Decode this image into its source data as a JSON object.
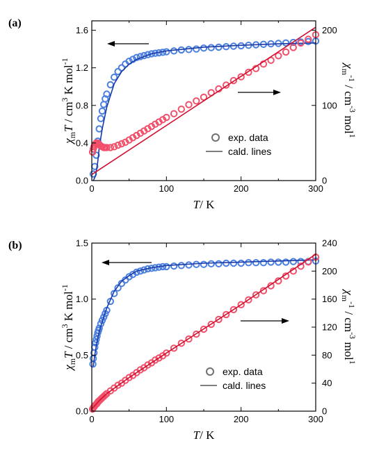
{
  "chart_data": [
    {
      "type": "scatter",
      "panel_label": "(a)",
      "xlabel_var": "T",
      "xlabel_unit": "/ K",
      "ylabel_left_parts": [
        "χ",
        "m",
        "T",
        "/ cm",
        "3",
        " K mol",
        "-1"
      ],
      "ylabel_right_parts": [
        "χ",
        "m",
        "-1",
        "/ cm",
        "-3",
        " mol",
        "1"
      ],
      "xlim": [
        0,
        300
      ],
      "ylim_left": [
        0,
        1.7
      ],
      "ylim_right": [
        0,
        212.5
      ],
      "x_ticks": [
        "0",
        "100",
        "200",
        "300"
      ],
      "y_left_ticks": [
        "0.0",
        "0.4",
        "0.8",
        "1.2",
        "1.6"
      ],
      "y_right_ticks": [
        "0",
        "100",
        "200"
      ],
      "legend": {
        "marker_label": "exp. data",
        "line_label": "cald. lines",
        "position": "center-right"
      },
      "arrows": [
        "left-pointing near χmT curve (left axis)",
        "right-pointing near χm⁻¹ curve (right axis)"
      ],
      "series": [
        {
          "axis": "left",
          "color": "#4a7fe0",
          "kind": "markers",
          "points": [
            [
              2,
              0.07
            ],
            [
              4,
              0.15
            ],
            [
              6,
              0.27
            ],
            [
              8,
              0.42
            ],
            [
              10,
              0.55
            ],
            [
              12,
              0.66
            ],
            [
              14,
              0.74
            ],
            [
              16,
              0.81
            ],
            [
              18,
              0.87
            ],
            [
              20,
              0.92
            ],
            [
              25,
              1.02
            ],
            [
              30,
              1.1
            ],
            [
              35,
              1.16
            ],
            [
              40,
              1.2
            ],
            [
              45,
              1.24
            ],
            [
              50,
              1.27
            ],
            [
              55,
              1.29
            ],
            [
              60,
              1.31
            ],
            [
              65,
              1.32
            ],
            [
              70,
              1.33
            ],
            [
              75,
              1.34
            ],
            [
              80,
              1.35
            ],
            [
              85,
              1.355
            ],
            [
              90,
              1.36
            ],
            [
              95,
              1.365
            ],
            [
              100,
              1.37
            ],
            [
              110,
              1.38
            ],
            [
              120,
              1.39
            ],
            [
              130,
              1.395
            ],
            [
              140,
              1.4
            ],
            [
              150,
              1.41
            ],
            [
              160,
              1.415
            ],
            [
              170,
              1.42
            ],
            [
              180,
              1.425
            ],
            [
              190,
              1.43
            ],
            [
              200,
              1.435
            ],
            [
              210,
              1.44
            ],
            [
              220,
              1.445
            ],
            [
              230,
              1.45
            ],
            [
              240,
              1.455
            ],
            [
              250,
              1.46
            ],
            [
              260,
              1.465
            ],
            [
              270,
              1.47
            ],
            [
              280,
              1.475
            ],
            [
              290,
              1.48
            ],
            [
              300,
              1.485
            ]
          ]
        },
        {
          "axis": "left",
          "color": "#1a3aa8",
          "kind": "line",
          "points": [
            [
              2,
              0.0
            ],
            [
              5,
              0.05
            ],
            [
              8,
              0.2
            ],
            [
              10,
              0.35
            ],
            [
              14,
              0.55
            ],
            [
              20,
              0.78
            ],
            [
              30,
              1.03
            ],
            [
              40,
              1.16
            ],
            [
              50,
              1.24
            ],
            [
              60,
              1.29
            ],
            [
              80,
              1.35
            ],
            [
              100,
              1.38
            ],
            [
              150,
              1.42
            ],
            [
              200,
              1.44
            ],
            [
              250,
              1.455
            ],
            [
              300,
              1.465
            ]
          ]
        },
        {
          "axis": "right",
          "color": "#f0506a",
          "kind": "markers",
          "points": [
            [
              1,
              38
            ],
            [
              2,
              42
            ],
            [
              3,
              45
            ],
            [
              4,
              47
            ],
            [
              5,
              49
            ],
            [
              6,
              50
            ],
            [
              7,
              50
            ],
            [
              8,
              50
            ],
            [
              9,
              49
            ],
            [
              10,
              48
            ],
            [
              12,
              46
            ],
            [
              14,
              45
            ],
            [
              16,
              44
            ],
            [
              18,
              44
            ],
            [
              20,
              44
            ],
            [
              25,
              44
            ],
            [
              30,
              45
            ],
            [
              35,
              47
            ],
            [
              40,
              49
            ],
            [
              45,
              51
            ],
            [
              50,
              54
            ],
            [
              55,
              57
            ],
            [
              60,
              60
            ],
            [
              65,
              63
            ],
            [
              70,
              66
            ],
            [
              75,
              69
            ],
            [
              80,
              72
            ],
            [
              85,
              75
            ],
            [
              90,
              78
            ],
            [
              95,
              81
            ],
            [
              100,
              84
            ],
            [
              110,
              89
            ],
            [
              120,
              95
            ],
            [
              130,
              101
            ],
            [
              140,
              106
            ],
            [
              150,
              111
            ],
            [
              160,
              117
            ],
            [
              170,
              122
            ],
            [
              180,
              127
            ],
            [
              190,
              133
            ],
            [
              200,
              138
            ],
            [
              210,
              144
            ],
            [
              220,
              149
            ],
            [
              230,
              155
            ],
            [
              240,
              160
            ],
            [
              250,
              166
            ],
            [
              260,
              171
            ],
            [
              270,
              177
            ],
            [
              280,
              183
            ],
            [
              290,
              188
            ],
            [
              300,
              194
            ]
          ]
        },
        {
          "axis": "right",
          "color": "#d01030",
          "kind": "line",
          "points": [
            [
              0,
              8
            ],
            [
              300,
              204
            ]
          ]
        }
      ]
    },
    {
      "type": "scatter",
      "panel_label": "(b)",
      "xlabel_var": "T",
      "xlabel_unit": "/ K",
      "ylabel_left_parts": [
        "χ",
        "m",
        "T",
        "/ cm",
        "3",
        " K mol",
        "-1"
      ],
      "ylabel_right_parts": [
        "χ",
        "m",
        "-1",
        "/ cm",
        "-3",
        " mol",
        "1"
      ],
      "xlim": [
        0,
        300
      ],
      "ylim_left": [
        0,
        1.5
      ],
      "ylim_right": [
        0,
        240
      ],
      "x_ticks": [
        "0",
        "100",
        "200",
        "300"
      ],
      "y_left_ticks": [
        "0.0",
        "0.5",
        "1.0",
        "1.5"
      ],
      "y_right_ticks": [
        "0",
        "40",
        "80",
        "120",
        "160",
        "200",
        "240"
      ],
      "legend": {
        "marker_label": "exp. data",
        "line_label": "cald. lines",
        "position": "center-right"
      },
      "arrows": [
        "left-pointing near χmT curve (left axis)",
        "right-pointing near χm⁻¹ curve (right axis)"
      ],
      "series": [
        {
          "axis": "left",
          "color": "#4a7fe0",
          "kind": "markers",
          "points": [
            [
              1.5,
              0.42
            ],
            [
              2,
              0.47
            ],
            [
              3,
              0.52
            ],
            [
              4,
              0.57
            ],
            [
              5,
              0.61
            ],
            [
              6,
              0.64
            ],
            [
              7,
              0.67
            ],
            [
              8,
              0.7
            ],
            [
              9,
              0.72
            ],
            [
              10,
              0.74
            ],
            [
              12,
              0.78
            ],
            [
              14,
              0.81
            ],
            [
              16,
              0.84
            ],
            [
              18,
              0.87
            ],
            [
              20,
              0.9
            ],
            [
              25,
              0.98
            ],
            [
              30,
              1.05
            ],
            [
              35,
              1.1
            ],
            [
              40,
              1.14
            ],
            [
              45,
              1.17
            ],
            [
              50,
              1.2
            ],
            [
              55,
              1.22
            ],
            [
              60,
              1.24
            ],
            [
              65,
              1.25
            ],
            [
              70,
              1.26
            ],
            [
              75,
              1.27
            ],
            [
              80,
              1.275
            ],
            [
              85,
              1.28
            ],
            [
              90,
              1.285
            ],
            [
              95,
              1.29
            ],
            [
              100,
              1.29
            ],
            [
              110,
              1.295
            ],
            [
              120,
              1.3
            ],
            [
              130,
              1.305
            ],
            [
              140,
              1.31
            ],
            [
              150,
              1.31
            ],
            [
              160,
              1.315
            ],
            [
              170,
              1.315
            ],
            [
              180,
              1.32
            ],
            [
              190,
              1.32
            ],
            [
              200,
              1.32
            ],
            [
              210,
              1.325
            ],
            [
              220,
              1.325
            ],
            [
              230,
              1.325
            ],
            [
              240,
              1.33
            ],
            [
              250,
              1.33
            ],
            [
              260,
              1.33
            ],
            [
              270,
              1.335
            ],
            [
              280,
              1.335
            ],
            [
              290,
              1.335
            ],
            [
              300,
              1.34
            ]
          ]
        },
        {
          "axis": "left",
          "color": "#1a3aa8",
          "kind": "line",
          "points": [
            [
              2,
              0.4
            ],
            [
              4,
              0.5
            ],
            [
              6,
              0.58
            ],
            [
              8,
              0.65
            ],
            [
              10,
              0.71
            ],
            [
              15,
              0.82
            ],
            [
              20,
              0.92
            ],
            [
              30,
              1.07
            ],
            [
              40,
              1.16
            ],
            [
              50,
              1.21
            ],
            [
              60,
              1.25
            ],
            [
              80,
              1.28
            ],
            [
              100,
              1.3
            ],
            [
              150,
              1.32
            ],
            [
              200,
              1.33
            ],
            [
              250,
              1.34
            ],
            [
              300,
              1.35
            ]
          ]
        },
        {
          "axis": "right",
          "color": "#f0506a",
          "kind": "markers",
          "points": [
            [
              1,
              3
            ],
            [
              2,
              5
            ],
            [
              3,
              6
            ],
            [
              4,
              8
            ],
            [
              5,
              9
            ],
            [
              6,
              10
            ],
            [
              7,
              11
            ],
            [
              8,
              13
            ],
            [
              9,
              14
            ],
            [
              10,
              15
            ],
            [
              12,
              17
            ],
            [
              14,
              19
            ],
            [
              16,
              21
            ],
            [
              18,
              23
            ],
            [
              20,
              25
            ],
            [
              25,
              29
            ],
            [
              30,
              33
            ],
            [
              35,
              37
            ],
            [
              40,
              40
            ],
            [
              45,
              44
            ],
            [
              50,
              48
            ],
            [
              55,
              51
            ],
            [
              60,
              55
            ],
            [
              65,
              59
            ],
            [
              70,
              62
            ],
            [
              75,
              66
            ],
            [
              80,
              69
            ],
            [
              85,
              73
            ],
            [
              90,
              76
            ],
            [
              95,
              79
            ],
            [
              100,
              83
            ],
            [
              110,
              90
            ],
            [
              120,
              97
            ],
            [
              130,
              103
            ],
            [
              140,
              110
            ],
            [
              150,
              117
            ],
            [
              160,
              124
            ],
            [
              170,
              131
            ],
            [
              180,
              138
            ],
            [
              190,
              145
            ],
            [
              200,
              152
            ],
            [
              210,
              159
            ],
            [
              220,
              166
            ],
            [
              230,
              172
            ],
            [
              240,
              179
            ],
            [
              250,
              186
            ],
            [
              260,
              193
            ],
            [
              270,
              200
            ],
            [
              280,
              207
            ],
            [
              290,
              213
            ],
            [
              300,
              220
            ]
          ]
        },
        {
          "axis": "right",
          "color": "#d01030",
          "kind": "line",
          "points": [
            [
              0,
              3
            ],
            [
              10,
              15
            ],
            [
              20,
              25
            ],
            [
              50,
              48
            ],
            [
              100,
              83
            ],
            [
              200,
              152
            ],
            [
              300,
              224
            ]
          ]
        }
      ]
    }
  ]
}
